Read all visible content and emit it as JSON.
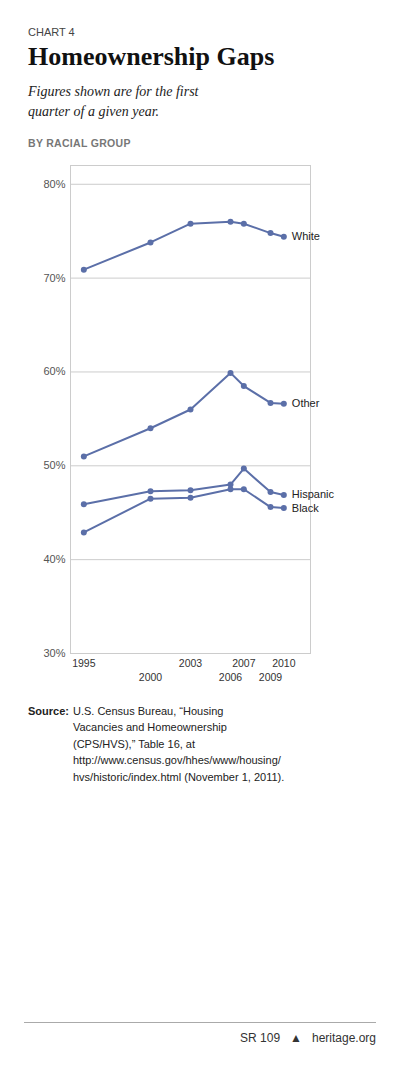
{
  "chart_data": {
    "type": "line",
    "chart_label": "CHART 4",
    "title": "Homeownership Gaps",
    "subtitle": "Figures shown are for the first\nquarter of a given year.",
    "section_label": "BY RACIAL GROUP",
    "x": [
      1995,
      2000,
      2003,
      2006,
      2007,
      2009,
      2010
    ],
    "series": [
      {
        "name": "White",
        "color": "#5b6fa8",
        "marker": "circle",
        "values": [
          70.9,
          73.8,
          75.8,
          76.0,
          75.8,
          74.8,
          74.4
        ]
      },
      {
        "name": "Other",
        "color": "#5b6fa8",
        "marker": "circle",
        "values": [
          51.0,
          54.0,
          56.0,
          59.9,
          58.5,
          56.7,
          56.6
        ]
      },
      {
        "name": "Hispanic",
        "color": "#5b6fa8",
        "marker": "circle",
        "values": [
          45.9,
          47.3,
          47.4,
          48.0,
          49.7,
          47.2,
          46.9
        ]
      },
      {
        "name": "Black",
        "color": "#5b6fa8",
        "marker": "circle",
        "values": [
          42.9,
          46.5,
          46.6,
          47.5,
          47.5,
          45.6,
          45.5
        ]
      }
    ],
    "xlim": [
      1994,
      2012
    ],
    "xticks": [
      1995,
      2000,
      2003,
      2006,
      2007,
      2009,
      2010
    ],
    "ylim": [
      30,
      82
    ],
    "yticks": [
      {
        "value": 30,
        "label": "30%"
      },
      {
        "value": 40,
        "label": "40%"
      },
      {
        "value": 50,
        "label": "50%"
      },
      {
        "value": 60,
        "label": "60%"
      },
      {
        "value": 70,
        "label": "70%"
      },
      {
        "value": 80,
        "label": "80%"
      }
    ],
    "grid": "y",
    "source_label": "Source:",
    "source": " U.S. Census Bureau, “Housing\nVacancies and Homeownership\n(CPS/HVS),” Table 16, at\nhttp://www.census.gov/hhes/www/housing/\nhvs/historic/index.html (November 1, 2011).",
    "footer": [
      "SR 109",
      "▲",
      "heritage.org"
    ]
  }
}
